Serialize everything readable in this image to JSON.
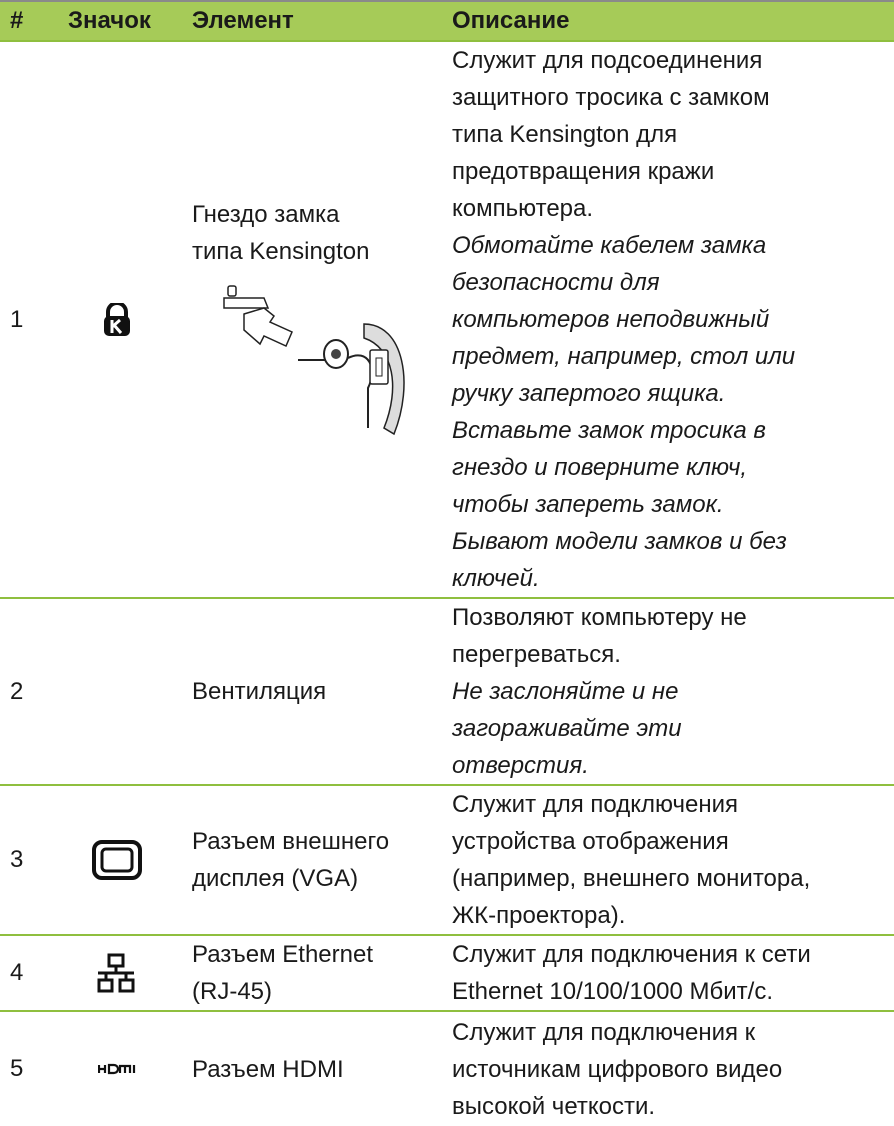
{
  "table": {
    "header": [
      "#",
      "Значок",
      "Элемент",
      "Описание"
    ],
    "rows": [
      {
        "number": "1",
        "element": [
          "Гнездо замка",
          "типа Kensington"
        ],
        "description": [
          "Служит для подсоединения",
          "защитного тросика с замком",
          "типа Kensington для",
          "предотвращения кражи",
          "компьютера."
        ],
        "note": [
          "Обмотайте кабелем замка",
          "безопасности для",
          "компьютеров неподвижный",
          "предмет, например, стол или",
          "ручку запертого ящика.",
          "Вставьте замок тросика в",
          "гнездо и поверните ключ,",
          "чтобы запереть замок.",
          "Бывают модели замков и без",
          "ключей."
        ]
      },
      {
        "number": "2",
        "element": [
          "Вентиляция"
        ],
        "description": [
          "Позволяют компьютеру не",
          "перегреваться."
        ],
        "note": [
          "Не заслоняйте и не",
          "загораживайте эти",
          "отверстия."
        ]
      },
      {
        "number": "3",
        "element": [
          "Разъем внешнего",
          "дисплея (VGA)"
        ],
        "description": [
          "Служит для подключения",
          "устройства отображения",
          "(например, внешнего монитора,",
          "ЖК-проектора)."
        ]
      },
      {
        "number": "4",
        "element": [
          "Разъем Ethernet",
          "(RJ-45)"
        ],
        "description": [
          "Служит для подключения к сети",
          "Ethernet 10/100/1000 Мбит/с."
        ]
      },
      {
        "number": "5",
        "element": [
          "Разъем HDMI"
        ],
        "description": [
          "Служит для подключения к",
          "источникам цифрового видео",
          "высокой четкости."
        ]
      }
    ]
  }
}
